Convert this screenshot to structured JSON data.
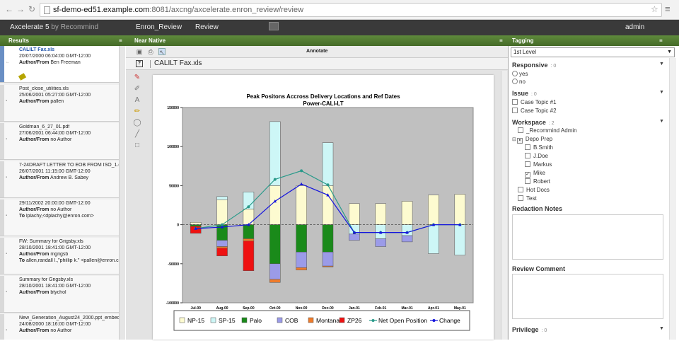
{
  "browser": {
    "url_host": "sf-demo-ed51.example.com",
    "url_rest": ":8081/axcng/axcelerate.enron_review/review"
  },
  "appbar": {
    "brand": "Axcelerate 5",
    "brand_by": "by Recommind",
    "tab1": "Enron_Review",
    "tab2": "Review",
    "user": "admin"
  },
  "panels": {
    "results": "Results",
    "native": "Near Native",
    "tagging": "Tagging"
  },
  "results": [
    {
      "title": "CALILT Fax.xls",
      "date": "20/07/2000 06:04:00 GMT-12:00",
      "author_label": "Author/From",
      "author": "Ben Freeman",
      "to_label": "",
      "to": ""
    },
    {
      "title": "Post_close_utilities.xls",
      "date": "25/06/2001 05:27:00 GMT-12:00",
      "author_label": "Author/From",
      "author": "pallen",
      "to_label": "",
      "to": ""
    },
    {
      "title": "Goldman_6_27_01.pdf",
      "date": "27/06/2001 06:44:00 GMT-12:00",
      "author_label": "Author/From",
      "author": "no Author",
      "to_label": "",
      "to": ""
    },
    {
      "title": "7-24DRAFT LETTER TO EOB FROM ISO_1.doc",
      "date": "26/07/2001 11:15:00 GMT-12:00",
      "author_label": "Author/From",
      "author": "Andrew B. Sabey",
      "to_label": "",
      "to": ""
    },
    {
      "title": "29/11/2002 20:00:00 GMT-12:00",
      "date": "",
      "author_label": "Author/From",
      "author": "no Author",
      "to_label": "To",
      "to": "lplachy,<dplachy@enron.com>"
    },
    {
      "title": "FW: Summary for Grigsby.xls",
      "date": "28/10/2001 18:41:00 GMT-12:00",
      "author_label": "Author/From",
      "author": "mgrigsb",
      "to_label": "To",
      "to": "allen,randall l.,\"phillip k.\" <pallen@enron.com..."
    },
    {
      "title": "Summary for Grigsby.xls",
      "date": "28/10/2001 18:41:00 GMT-12:00",
      "author_label": "Author/From",
      "author": "btychol",
      "to_label": "",
      "to": ""
    },
    {
      "title": "New_Generation_August24_2000.ppt_embeddi...",
      "date": "24/08/2000 18:16:00 GMT-12:00",
      "author_label": "Author/From",
      "author": "no Author",
      "to_label": "",
      "to": ""
    }
  ],
  "viewer": {
    "annotate": "Annotate",
    "file_title": "CALILT Fax.xls"
  },
  "tagging": {
    "level": "1st Level",
    "responsive": {
      "label": "Responsive",
      "count": ": 0",
      "options": [
        "yes",
        "no"
      ]
    },
    "issue": {
      "label": "Issue",
      "count": ": 0",
      "options": [
        "Case Topic #1",
        "Case Topic #2"
      ]
    },
    "workspace": {
      "label": "Workspace",
      "count": ": 2",
      "items": [
        "_Recommind Admin",
        "Depo Prep",
        "B.Smith",
        "J.Doe",
        "Markus",
        "Mike",
        "Robert",
        "Hot Docs",
        "Test"
      ]
    },
    "redaction": "Redaction Notes",
    "review": "Review Comment",
    "privilege": {
      "label": "Privilege",
      "count": ": 0"
    }
  },
  "chart_data": {
    "type": "bar",
    "title": "Peak Positons Accross Delivery Locations and Ref Dates",
    "subtitle": "Power-CALI-LT",
    "categories": [
      "Jul-00",
      "Aug-00",
      "Sep-00",
      "Oct-00",
      "Nov-00",
      "Dec-00",
      "Jan-01",
      "Feb-01",
      "Mar-01",
      "Apr-01",
      "May-01"
    ],
    "ylim": [
      -100000,
      150000
    ],
    "yticks": [
      150000,
      100000,
      50000,
      0,
      -50000,
      -100000
    ],
    "grid": false,
    "legend": "bottom",
    "series": [
      {
        "name": "NP-15",
        "kind": "bar",
        "color": "#fdfbd0",
        "values": [
          3000,
          32000,
          20000,
          50000,
          50000,
          50000,
          27000,
          27000,
          30000,
          38000,
          39000
        ]
      },
      {
        "name": "SP-15",
        "kind": "bar",
        "color": "#cdf6f6",
        "values": [
          0,
          4000,
          22000,
          82000,
          0,
          55000,
          -12000,
          -18000,
          -14000,
          -37000,
          -39000
        ]
      },
      {
        "name": "Palo",
        "kind": "bar",
        "color": "#1a8a1a",
        "values": [
          -2000,
          -20000,
          -18000,
          -50000,
          -35000,
          -35000,
          0,
          0,
          0,
          0,
          0
        ]
      },
      {
        "name": "COB",
        "kind": "bar",
        "color": "#9b9be8",
        "values": [
          0,
          -8000,
          0,
          -20000,
          -20000,
          -18000,
          -8000,
          -10000,
          -8000,
          0,
          0
        ]
      },
      {
        "name": "Montana",
        "kind": "bar",
        "color": "#ef7b2a",
        "values": [
          0,
          -2000,
          -3000,
          -4000,
          -3000,
          -1000,
          0,
          0,
          0,
          0,
          0
        ]
      },
      {
        "name": "ZP26",
        "kind": "bar",
        "color": "#ee1111",
        "values": [
          -9000,
          -10000,
          -38000,
          0,
          0,
          0,
          0,
          0,
          0,
          0,
          0
        ]
      },
      {
        "name": "Net Open Position",
        "kind": "line",
        "color": "#2a9a8a",
        "values": [
          -5000,
          0,
          23000,
          58000,
          69000,
          51000,
          -10000,
          -10000,
          -10000,
          0,
          0
        ]
      },
      {
        "name": "Change",
        "kind": "line",
        "color": "#1515dd",
        "values": [
          -5000,
          -3000,
          0,
          30000,
          52000,
          38000,
          -10000,
          -10000,
          -10000,
          0,
          0
        ]
      }
    ]
  }
}
